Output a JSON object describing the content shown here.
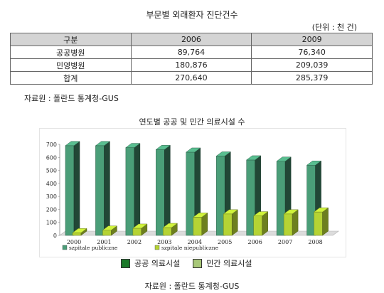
{
  "title": "부문별 외래환자 진단건수",
  "unit": "(단위 : 천 건)",
  "table": {
    "headers": [
      "구분",
      "2006",
      "2009"
    ],
    "rows": [
      [
        "공공병원",
        "89,764",
        "76,340"
      ],
      [
        "민영병원",
        "180,876",
        "209,039"
      ],
      [
        "합계",
        "270,640",
        "285,379"
      ]
    ]
  },
  "source_table": "자료원 : 폴란드 통계청-GUS",
  "chart_title": "연도별 공공 및 민간 의료시설 수",
  "chart_data": {
    "type": "bar",
    "categories": [
      "2000",
      "2001",
      "2002",
      "2003",
      "2004",
      "2005",
      "2006",
      "2007",
      "2008"
    ],
    "series": [
      {
        "name": "szpitale publiczne",
        "values": [
          690,
          690,
          675,
          660,
          640,
          610,
          580,
          570,
          540
        ],
        "color": "#4a9e78"
      },
      {
        "name": "szpitale niepubliczne",
        "values": [
          20,
          40,
          55,
          60,
          140,
          165,
          150,
          165,
          180
        ],
        "color": "#b5d334"
      }
    ],
    "ylim": [
      0,
      700
    ],
    "yticks": [
      "0",
      "100",
      "200",
      "300",
      "400",
      "500",
      "600",
      "700"
    ],
    "legend_position": "bottom",
    "grid": false
  },
  "legend_ko": [
    {
      "label": "공공 의료시설",
      "color": "#1b7a2a"
    },
    {
      "label": "민간 의료시설",
      "color": "#a8c878"
    }
  ],
  "source_chart": "자료원 : 폴란드 통계청-GUS"
}
